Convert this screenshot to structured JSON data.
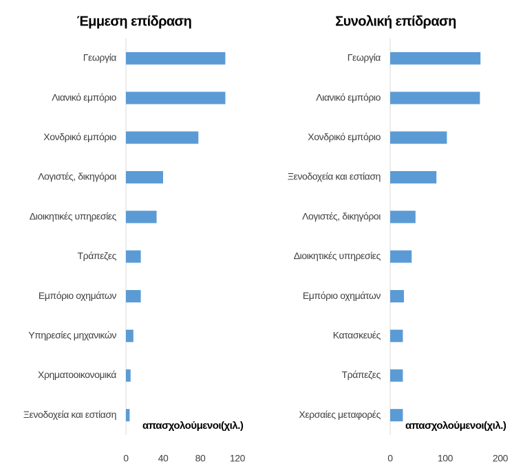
{
  "chart_data": [
    {
      "type": "bar",
      "orientation": "horizontal",
      "title": "Έμμεση επίδραση",
      "x_label": "απασχολούμενοι(χιλ.)",
      "categories": [
        "Γεωργία",
        "Λιανικό εμπόριο",
        "Χονδρικό εμπόριο",
        "Λογιστές, δικηγόροι",
        "Διοικητικές υπηρεσίες",
        "Τράπεζες",
        "Εμπόριο οχημάτων",
        "Υπηρεσίες μηχανικών",
        "Χρηματοοικονομικά",
        "Ξενοδοχεία και εστίαση"
      ],
      "values": [
        107,
        107,
        78,
        40,
        33,
        16,
        16,
        8,
        5,
        4
      ],
      "color": "#5b9bd5",
      "xlim": [
        0,
        120
      ],
      "xticks": [
        0,
        40,
        80,
        120
      ]
    },
    {
      "type": "bar",
      "orientation": "horizontal",
      "title": "Συνολική επίδραση",
      "x_label": "απασχολούμενοι(χιλ.)",
      "categories": [
        "Γεωργία",
        "Λιανικό εμπόριο",
        "Χονδρικό εμπόριο",
        "Ξενοδοχεία και εστίαση",
        "Λογιστές, δικηγόροι",
        "Διοικητικές υπηρεσίες",
        "Εμπόριο οχημάτων",
        "Κατασκευές",
        "Τράπεζες",
        "Χερσαίες μεταφορές"
      ],
      "values": [
        164,
        163,
        103,
        84,
        46,
        39,
        25,
        23,
        23,
        23
      ],
      "color": "#5b9bd5",
      "xlim": [
        0,
        200
      ],
      "xticks": [
        0,
        100,
        200
      ]
    }
  ]
}
